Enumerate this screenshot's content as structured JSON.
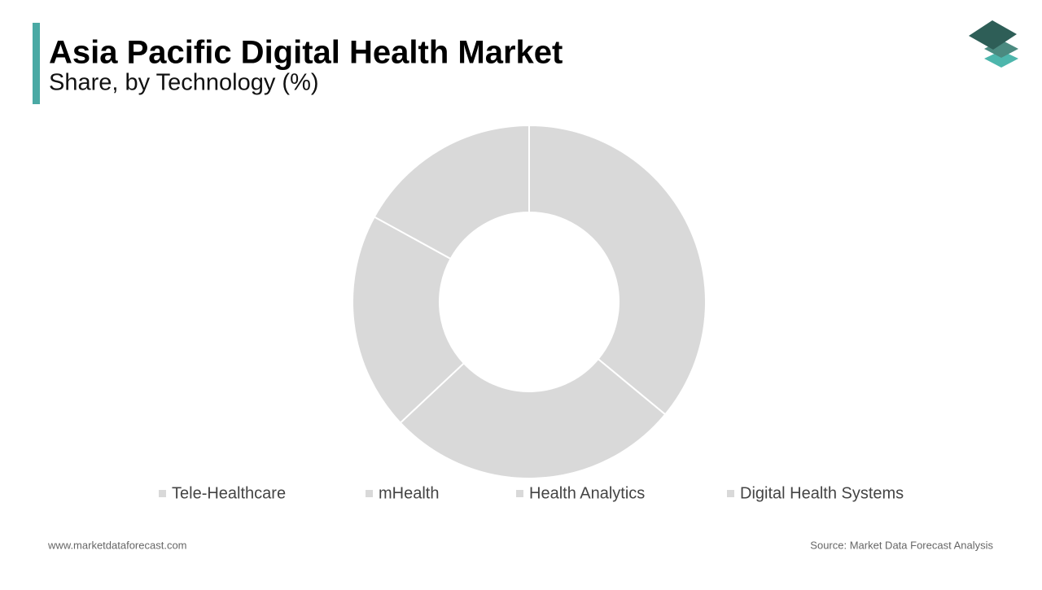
{
  "chart_data": {
    "type": "donut",
    "title": "Asia Pacific Digital Health Market",
    "subtitle": "Share, by Technology (%)",
    "categories": [
      "Tele-Healthcare",
      "mHealth",
      "Health Analytics",
      "Digital Health Systems"
    ],
    "values": [
      36,
      27,
      20,
      17
    ],
    "colors": [
      "#d9d9d9",
      "#d9d9d9",
      "#d9d9d9",
      "#d9d9d9"
    ]
  },
  "footer": {
    "website": "www.marketdataforecast.com",
    "source": "Source: Market Data Forecast Analysis"
  }
}
